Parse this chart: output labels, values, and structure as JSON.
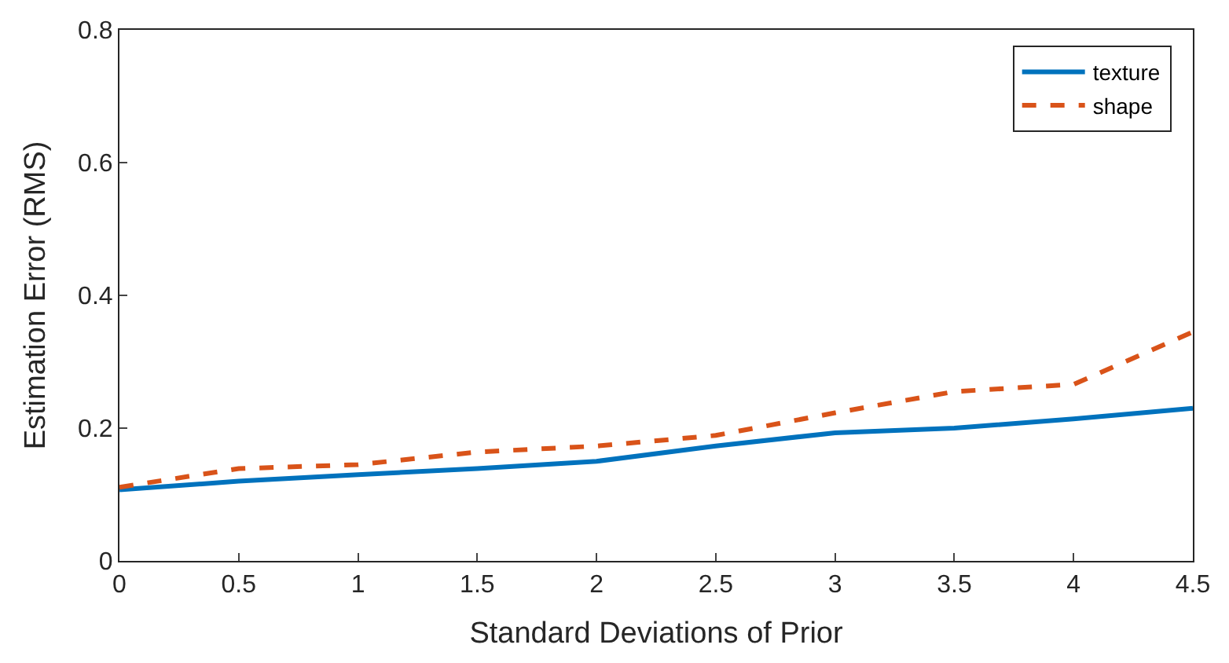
{
  "chart_data": {
    "type": "line",
    "xlabel": "Standard Deviations of Prior",
    "ylabel": "Estimation Error (RMS)",
    "x": [
      0,
      0.5,
      1,
      1.5,
      2,
      2.5,
      3,
      3.5,
      4,
      4.5
    ],
    "series": [
      {
        "name": "texture",
        "color": "#0072bd",
        "line_style": "solid",
        "values": [
          0.107,
          0.12,
          0.13,
          0.139,
          0.15,
          0.173,
          0.193,
          0.2,
          0.214,
          0.23
        ]
      },
      {
        "name": "shape",
        "color": "#d95319",
        "line_style": "dashed",
        "values": [
          0.111,
          0.139,
          0.145,
          0.164,
          0.173,
          0.189,
          0.223,
          0.255,
          0.266,
          0.345
        ]
      }
    ],
    "xlim": [
      0,
      4.5
    ],
    "xticks": [
      0,
      0.5,
      1,
      1.5,
      2,
      2.5,
      3,
      3.5,
      4,
      4.5
    ],
    "ylim": [
      0,
      0.8
    ],
    "yticks": [
      0,
      0.2,
      0.4,
      0.6,
      0.8
    ],
    "legend": "top right",
    "marker": "none"
  }
}
